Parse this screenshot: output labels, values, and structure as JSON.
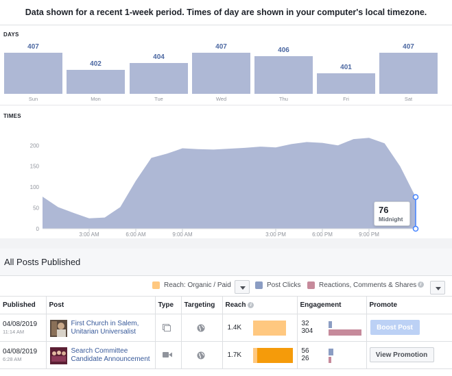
{
  "notice": "Data shown for a recent 1-week period. Times of day are shown in your computer's local timezone.",
  "days_section": {
    "label": "DAYS"
  },
  "times_section": {
    "label": "TIMES"
  },
  "chart_data": [
    {
      "type": "bar",
      "categories": [
        "Sun",
        "Mon",
        "Tue",
        "Wed",
        "Thu",
        "Fri",
        "Sat"
      ],
      "values": [
        407,
        402,
        404,
        407,
        406,
        401,
        407
      ],
      "value_labels": [
        "407",
        "402",
        "404",
        "407",
        "406",
        "401",
        "407"
      ],
      "color": "#aeb8d5"
    },
    {
      "type": "area",
      "x": [
        0,
        1,
        2,
        3,
        4,
        5,
        6,
        7,
        8,
        9,
        10,
        11,
        12,
        13,
        14,
        15,
        16,
        17,
        18,
        19,
        20,
        21,
        22,
        23,
        24
      ],
      "values": [
        77,
        52,
        38,
        25,
        27,
        52,
        115,
        170,
        180,
        193,
        191,
        190,
        192,
        194,
        197,
        195,
        203,
        208,
        206,
        200,
        215,
        218,
        205,
        150,
        76
      ],
      "yticks": [
        "0",
        "50",
        "100",
        "150",
        "200"
      ],
      "ylim": [
        0,
        230
      ],
      "xtick_labels": [
        "3:00 AM",
        "6:00 AM",
        "9:00 AM",
        "3:00 PM",
        "6:00 PM",
        "9:00 PM"
      ],
      "xtick_positions": [
        3,
        6,
        9,
        15,
        18,
        21
      ],
      "grid": false,
      "color": "#aeb8d5",
      "tooltip": {
        "value": "76",
        "label": "Midnight"
      }
    }
  ],
  "posts": {
    "title": "All Posts Published",
    "legend": {
      "reach": "Reach: Organic / Paid",
      "clicks": "Post Clicks",
      "reactions": "Reactions, Comments & Shares",
      "colors": {
        "reach": "#ffc880",
        "clicks": "#8b9dc3",
        "reactions": "#c68a9b"
      }
    },
    "columns": [
      "Published",
      "Post",
      "Type",
      "Targeting",
      "Reach",
      "Engagement",
      "Promote"
    ],
    "rows": [
      {
        "date": "04/08/2019",
        "time": "11:14 AM",
        "title": "First Church in Salem, Unitarian Universalist",
        "type_icon": "status-update-icon",
        "targeting_icon": "globe-icon",
        "reach": "1.4K",
        "reach_organic_fraction": 1.0,
        "engagement_clicks": "32",
        "engagement_reactions": "304",
        "promote_label": "Boost Post"
      },
      {
        "date": "04/08/2019",
        "time": "6:28 AM",
        "title": "Search Committee Candidate Announcement",
        "type_icon": "video-icon",
        "targeting_icon": "globe-icon",
        "reach": "1.7K",
        "reach_organic_fraction": 0.1,
        "engagement_clicks": "56",
        "engagement_reactions": "26",
        "promote_label": "View Promotion"
      }
    ]
  }
}
